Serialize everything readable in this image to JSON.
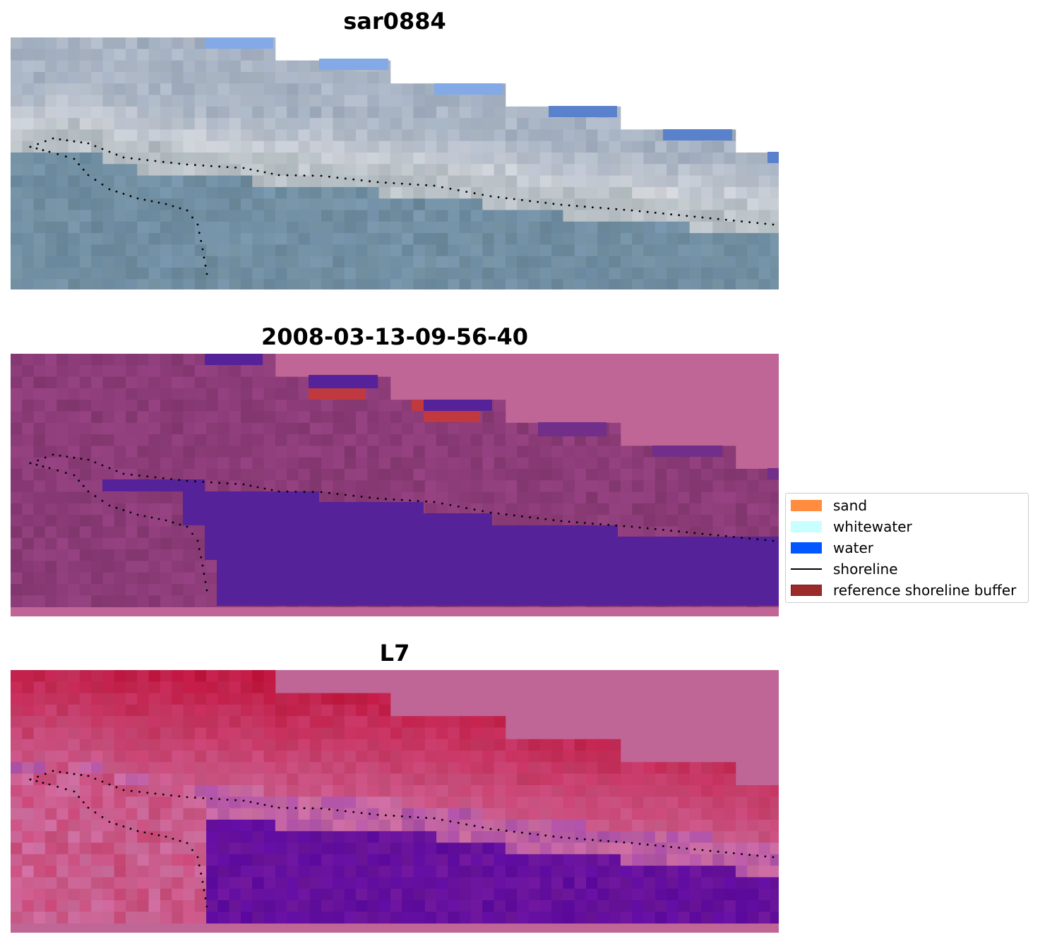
{
  "panels": [
    {
      "title": "sar0884",
      "kind": "rgb"
    },
    {
      "title": "2008-03-13-09-56-40",
      "kind": "classified"
    },
    {
      "title": "L7",
      "kind": "index"
    }
  ],
  "legend": {
    "items": [
      {
        "label": "sand",
        "color": "#ff8c3f",
        "type": "patch"
      },
      {
        "label": "whitewater",
        "color": "#c8ffff",
        "type": "patch"
      },
      {
        "label": "water",
        "color": "#0057ff",
        "type": "patch"
      },
      {
        "label": "shoreline",
        "color": "#000000",
        "type": "line"
      },
      {
        "label": "reference shoreline buffer",
        "color": "#9b2b2b",
        "type": "patch"
      }
    ]
  },
  "colors": {
    "nodata_pink": "#bf6696",
    "classified_water": "#55229a",
    "buffer_red": "#c0393f",
    "rgb_vegetation": "#6e8c9c",
    "rgb_beach": "#d6d8dc",
    "rgb_cloud_blue": "#8ab0ec",
    "index_red": "#c2204a",
    "index_purple": "#5e0ba0",
    "shoreline_dots": "#000000"
  }
}
